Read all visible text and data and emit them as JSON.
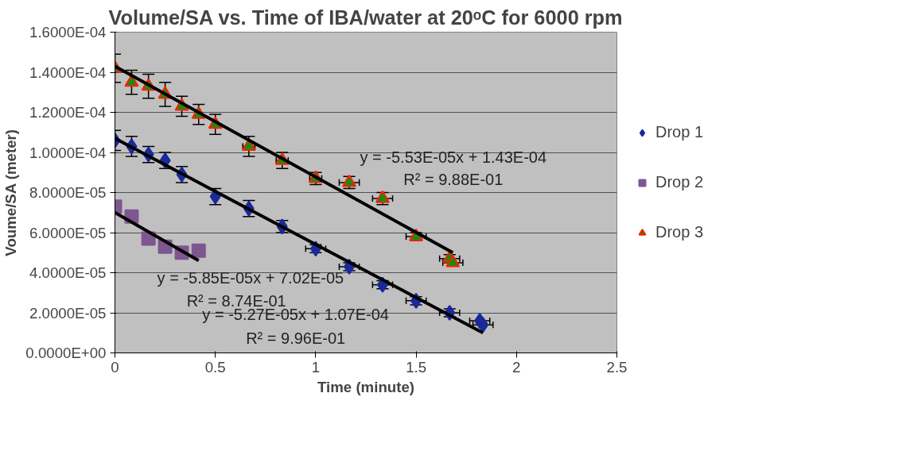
{
  "chart_data": {
    "type": "scatter",
    "title": "Volume/SA vs. Time of IBA/water at 20ᵒC for 6000 rpm",
    "xlabel": "Time (minute)",
    "ylabel": "Voume/SA (meter)",
    "xlim": [
      0,
      2.5
    ],
    "xticks": [
      0,
      0.5,
      1,
      1.5,
      2,
      2.5
    ],
    "ylim": [
      0,
      0.00016
    ],
    "yticks": [
      {
        "value": 0,
        "label": "0.0000E+00"
      },
      {
        "value": 2e-05,
        "label": "2.0000E-05"
      },
      {
        "value": 4e-05,
        "label": "4.0000E-05"
      },
      {
        "value": 6e-05,
        "label": "6.0000E-05"
      },
      {
        "value": 8e-05,
        "label": "8.0000E-05"
      },
      {
        "value": 0.0001,
        "label": "1.0000E-04"
      },
      {
        "value": 0.00012,
        "label": "1.2000E-04"
      },
      {
        "value": 0.00014,
        "label": "1.4000E-04"
      },
      {
        "value": 0.00016,
        "label": "1.6000E-04"
      }
    ],
    "grid": "y",
    "legend": "right",
    "series": [
      {
        "name": "Drop 1",
        "marker": "diamond",
        "color": "#1a2a9a",
        "x": [
          0,
          0.083,
          0.167,
          0.25,
          0.333,
          0.5,
          0.667,
          0.833,
          1.0,
          1.167,
          1.333,
          1.5,
          1.667,
          1.817,
          1.833
        ],
        "values": [
          0.000106,
          0.000103,
          9.9e-05,
          9.6e-05,
          8.9e-05,
          7.8e-05,
          7.2e-05,
          6.3e-05,
          5.2e-05,
          4.3e-05,
          3.4e-05,
          2.6e-05,
          2e-05,
          1.6e-05,
          1.4e-05
        ],
        "errors": [
          5e-06,
          5e-06,
          4e-06,
          4e-06,
          4e-06,
          4e-06,
          4e-06,
          3e-06,
          2e-06,
          2e-06,
          2e-06,
          2e-06,
          2e-06,
          null,
          null
        ],
        "xerrors": [
          null,
          null,
          null,
          null,
          null,
          null,
          null,
          null,
          0.05,
          0.05,
          0.05,
          0.05,
          0.05,
          0.05,
          0.05
        ]
      },
      {
        "name": "Drop 2",
        "marker": "square",
        "color": "#7e5690",
        "x": [
          0,
          0.083,
          0.167,
          0.25,
          0.333,
          0.417
        ],
        "values": [
          7.3e-05,
          6.8e-05,
          5.7e-05,
          5.3e-05,
          5e-05,
          5.1e-05
        ]
      },
      {
        "name": "Drop 3",
        "marker": "triangle",
        "color": "#1a8a10",
        "x": [
          0,
          0.083,
          0.167,
          0.25,
          0.333,
          0.417,
          0.5,
          0.667,
          0.833,
          1.0,
          1.167,
          1.333,
          1.5,
          1.667,
          1.683
        ],
        "values": [
          0.000142,
          0.000135,
          0.000133,
          0.000129,
          0.000123,
          0.000119,
          0.000114,
          0.000103,
          9.6e-05,
          8.7e-05,
          8.5e-05,
          7.7e-05,
          5.8e-05,
          4.7e-05,
          4.5e-05
        ],
        "errors": [
          7e-06,
          6e-06,
          6e-06,
          6e-06,
          5e-06,
          5e-06,
          5e-06,
          5e-06,
          4e-06,
          3e-06,
          3e-06,
          3e-06,
          2e-06,
          2e-06,
          null
        ],
        "xerrors": [
          null,
          null,
          null,
          null,
          null,
          null,
          null,
          0.03,
          0.03,
          0.03,
          0.05,
          0.05,
          0.05,
          0.05,
          0.05
        ]
      },
      {
        "type": "line",
        "color": "#000000",
        "x": [
          0,
          1.833
        ],
        "values": [
          0.000107,
          1e-05
        ]
      },
      {
        "type": "line",
        "color": "#000000",
        "x": [
          0,
          0.417
        ],
        "values": [
          7e-05,
          4.6e-05
        ]
      },
      {
        "type": "line",
        "color": "#000000",
        "x": [
          0,
          1.683
        ],
        "values": [
          0.000143,
          5e-05
        ]
      }
    ],
    "annotations": [
      "y = -5.53E-05x + 1.43E-04",
      "R² = 9.88E-01",
      "y = -5.85E-05x + 7.02E-05",
      "R² = 8.74E-01",
      "y = -5.27E-05x + 1.07E-04",
      "R² = 9.96E-01"
    ]
  }
}
